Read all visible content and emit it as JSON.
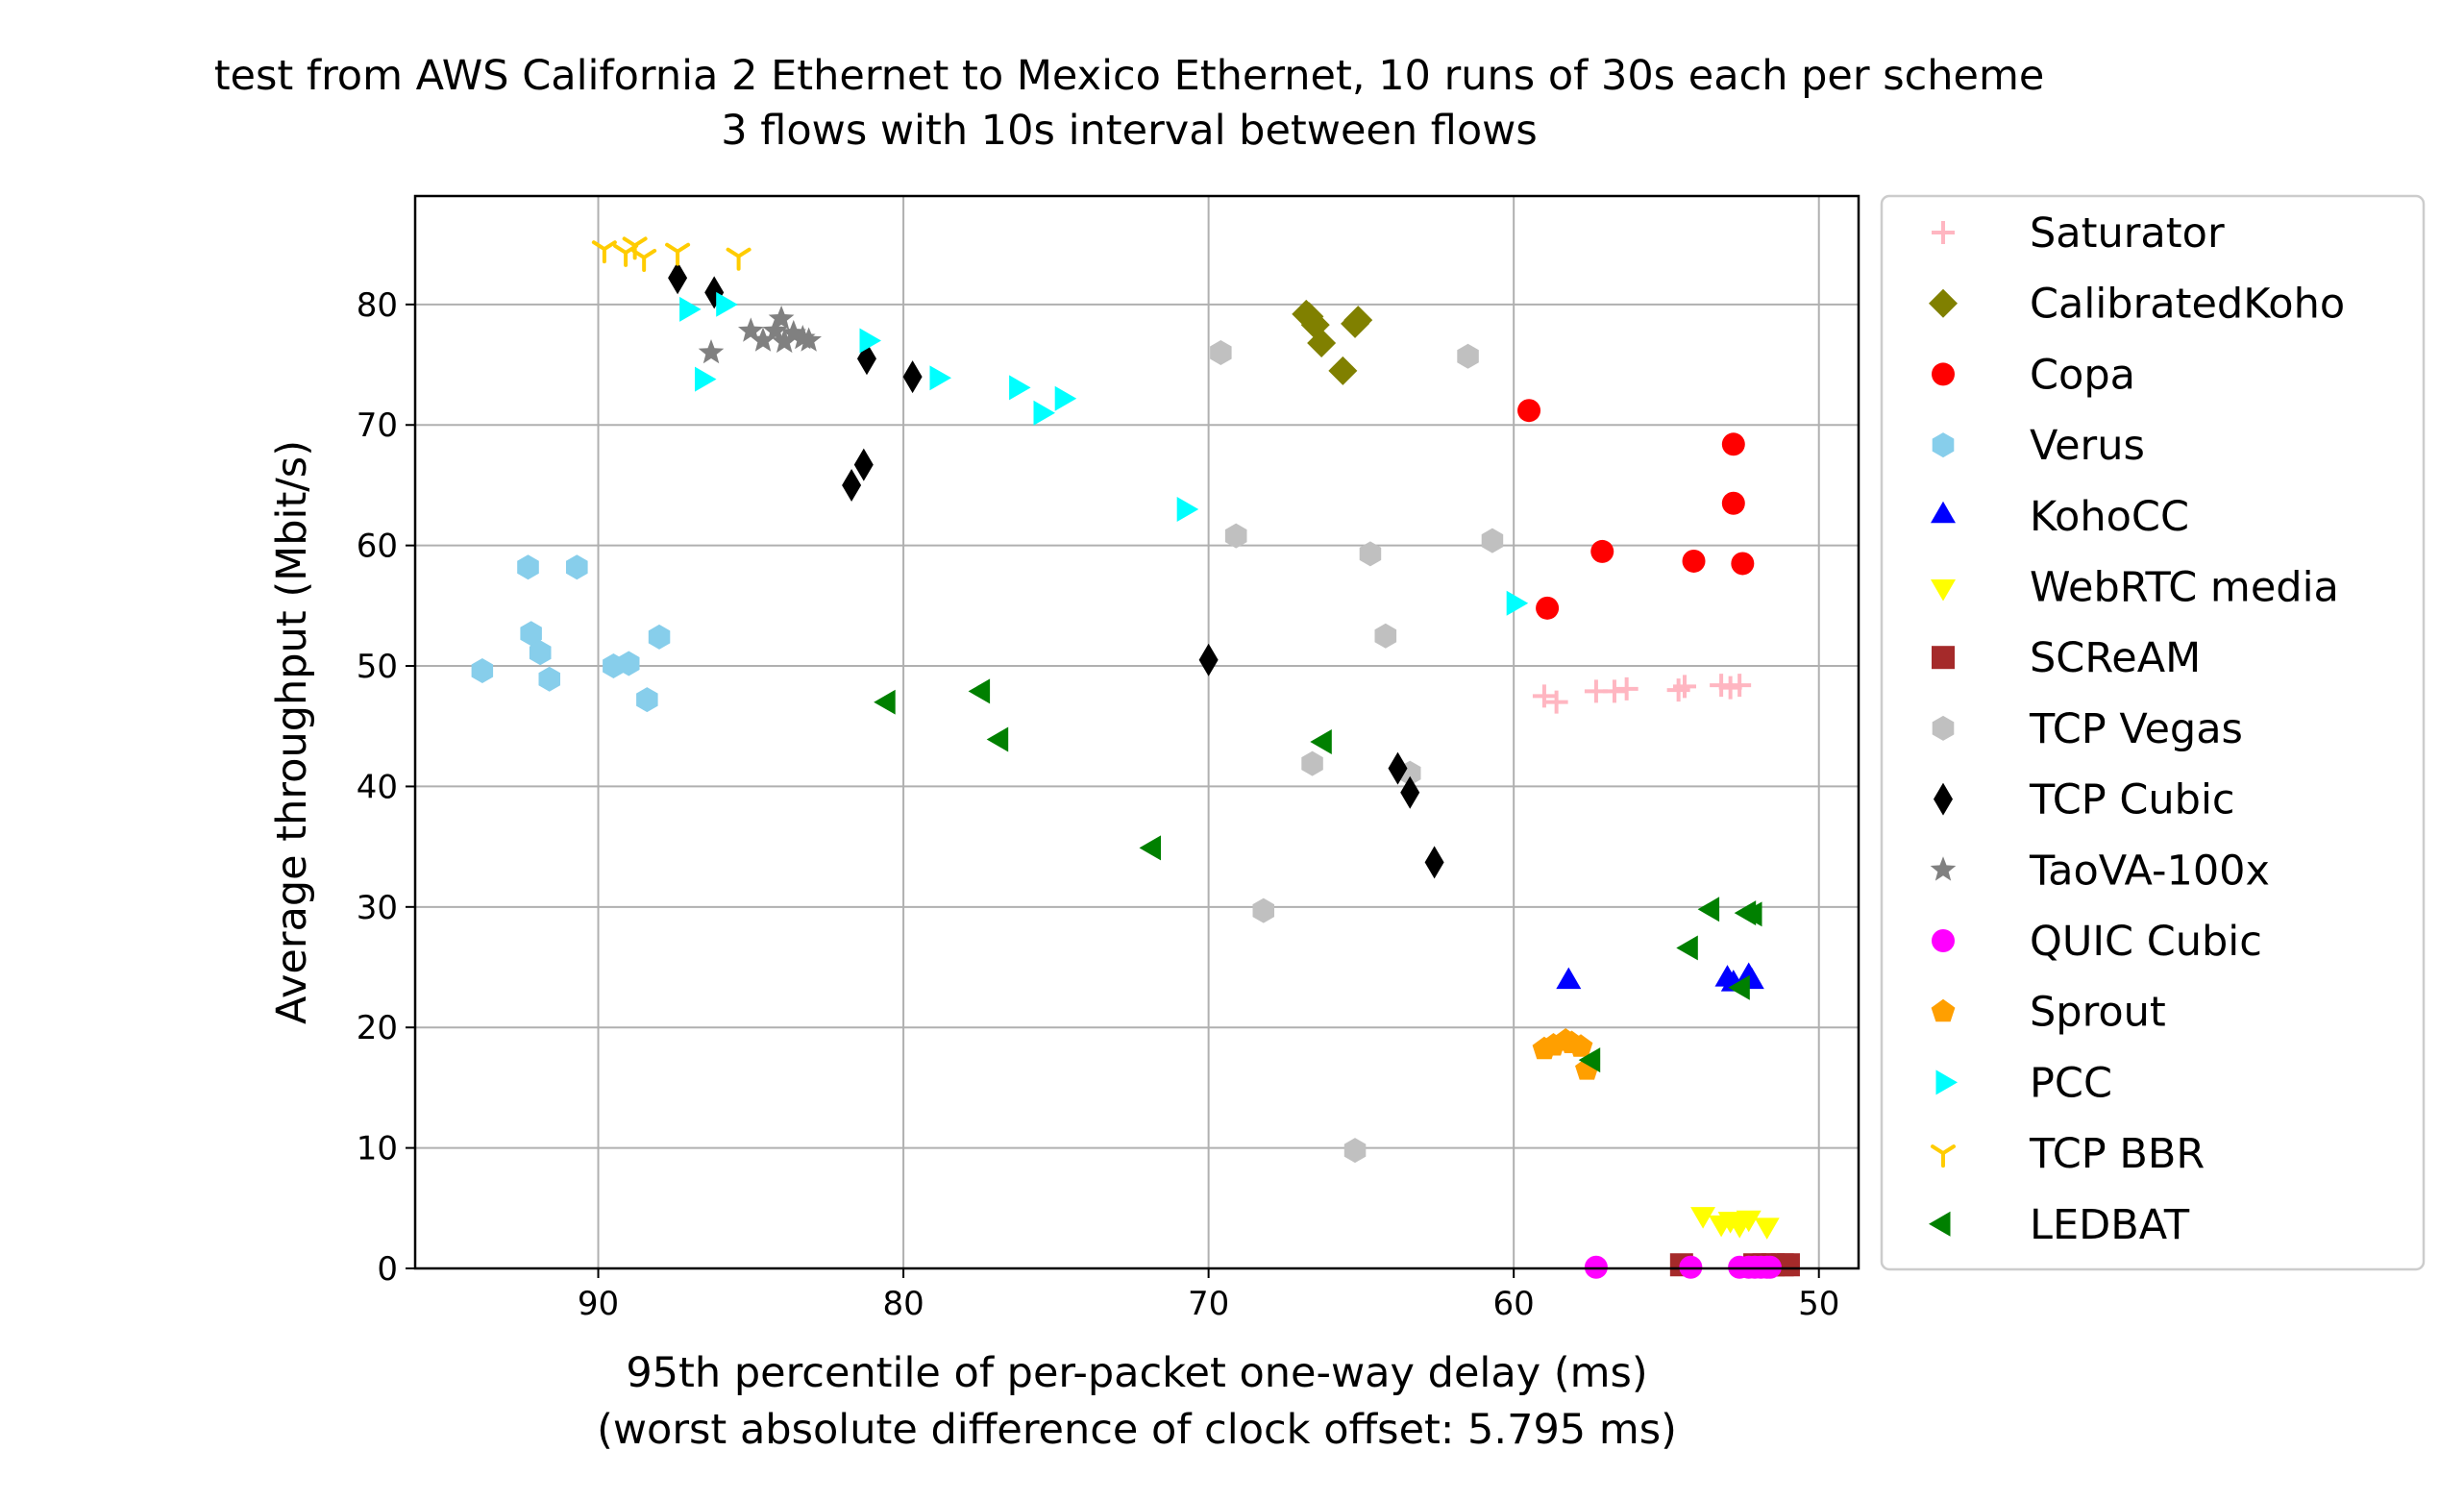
{
  "chart_data": {
    "type": "scatter",
    "title": "test from AWS California 2 Ethernet to Mexico Ethernet, 10 runs of 30s each per scheme",
    "subtitle": "3 flows with 10s interval between flows",
    "xlabel": "95th percentile of per-packet one-way delay (ms)",
    "xlabel2": "(worst absolute difference of clock offset: 5.795 ms)",
    "ylabel": "Average throughput (Mbit/s)",
    "xlim": [
      96,
      48.7
    ],
    "ylim": [
      0,
      89
    ],
    "x_inverted": true,
    "grid": true,
    "legend_position": "outside-right",
    "xticks": [
      90,
      80,
      70,
      60,
      50
    ],
    "yticks": [
      0,
      10,
      20,
      30,
      40,
      50,
      60,
      70,
      80
    ],
    "series": [
      {
        "name": "Saturator",
        "marker": "plus",
        "color": "#ffb6c1",
        "x": [
          59.0,
          58.6,
          57.3,
          56.7,
          56.3,
          54.6,
          54.4,
          53.2,
          52.9,
          52.6
        ],
        "y": [
          47.5,
          47.0,
          47.9,
          47.9,
          48.1,
          48.0,
          48.3,
          48.4,
          48.2,
          48.4
        ]
      },
      {
        "name": "CalibratedKoho",
        "marker": "diamond",
        "color": "#808000",
        "x": [
          66.8,
          66.7,
          66.5,
          66.3,
          65.6,
          65.2,
          65.1
        ],
        "y": [
          79.2,
          79.0,
          78.3,
          76.8,
          74.5,
          78.4,
          78.7
        ]
      },
      {
        "name": "Copa",
        "marker": "circle",
        "color": "#ff0000",
        "x": [
          59.5,
          58.9,
          57.1,
          54.1,
          52.8,
          52.8,
          52.5
        ],
        "y": [
          71.2,
          54.8,
          59.5,
          58.7,
          68.4,
          63.5,
          58.5
        ]
      },
      {
        "name": "Verus",
        "marker": "hexagon",
        "color": "#87ceeb",
        "x": [
          93.8,
          92.3,
          92.2,
          91.9,
          91.6,
          90.7,
          89.5,
          89.0,
          88.4,
          88.0
        ],
        "y": [
          49.6,
          58.2,
          52.7,
          51.1,
          48.9,
          58.2,
          50.0,
          50.2,
          47.2,
          52.4
        ]
      },
      {
        "name": "KohoCC",
        "marker": "triangle-up",
        "color": "#0000ff",
        "x": [
          58.2,
          53.0,
          52.8,
          52.3,
          52.2
        ],
        "y": [
          23.8,
          24.0,
          23.6,
          24.2,
          23.8
        ]
      },
      {
        "name": "WebRTC media",
        "marker": "triangle-down",
        "color": "#ffff00",
        "x": [
          53.8,
          53.2,
          52.9,
          52.6,
          52.3,
          51.7
        ],
        "y": [
          4.5,
          3.8,
          4.1,
          3.7,
          4.2,
          3.6
        ]
      },
      {
        "name": "SCReAM",
        "marker": "square",
        "color": "#a52a2a",
        "x": [
          54.5,
          52.1,
          51.8,
          51.5,
          51.2,
          51.0
        ],
        "y": [
          0.3,
          0.3,
          0.3,
          0.3,
          0.3,
          0.3
        ]
      },
      {
        "name": "TCP Vegas",
        "marker": "hexagon",
        "color": "#c0c0c0",
        "x": [
          69.6,
          69.1,
          68.2,
          66.6,
          65.2,
          64.7,
          64.2,
          63.4,
          61.5,
          60.7
        ],
        "y": [
          76.0,
          60.8,
          29.7,
          41.9,
          9.8,
          59.3,
          52.5,
          41.1,
          75.7,
          60.4
        ]
      },
      {
        "name": "TCP Cubic",
        "marker": "thin-diamond",
        "color": "#000000",
        "x": [
          87.4,
          86.2,
          81.7,
          81.3,
          81.2,
          79.7,
          70.0,
          63.8,
          63.4,
          62.6
        ],
        "y": [
          82.2,
          81.0,
          65.0,
          66.7,
          75.5,
          74.0,
          50.5,
          41.5,
          39.5,
          33.7
        ]
      },
      {
        "name": "TaoVA-100x",
        "marker": "star",
        "color": "#808080",
        "x": [
          86.3,
          85.0,
          84.6,
          84.2,
          84.0,
          83.9,
          83.6,
          83.3,
          83.1
        ],
        "y": [
          76.0,
          77.8,
          77.0,
          77.8,
          78.8,
          76.9,
          77.6,
          77.2,
          77.0
        ]
      },
      {
        "name": "QUIC Cubic",
        "marker": "circle",
        "color": "#ff00ff",
        "x": [
          57.3,
          54.2,
          52.6,
          52.3,
          52.1,
          51.9,
          51.7,
          51.6
        ],
        "y": [
          0.1,
          0.1,
          0.1,
          0.1,
          0.1,
          0.1,
          0.1,
          0.1
        ]
      },
      {
        "name": "Sprout",
        "marker": "pentagon",
        "color": "#ff9f00",
        "x": [
          59.0,
          58.7,
          58.3,
          58.1,
          57.8,
          57.6
        ],
        "y": [
          18.2,
          18.5,
          18.9,
          18.7,
          18.4,
          16.5
        ]
      },
      {
        "name": "PCC",
        "marker": "triangle-right",
        "color": "#00ffff",
        "x": [
          87.1,
          86.6,
          85.9,
          81.2,
          78.9,
          76.3,
          75.5,
          74.8,
          70.8,
          60.0
        ],
        "y": [
          79.6,
          73.8,
          80.0,
          77.0,
          73.9,
          73.1,
          71.0,
          72.2,
          63.0,
          55.2
        ]
      },
      {
        "name": "TCP BBR",
        "marker": "tri-down",
        "color": "#ffcc00",
        "x": [
          89.8,
          89.1,
          88.8,
          88.5,
          87.4,
          85.4
        ],
        "y": [
          84.6,
          84.3,
          84.9,
          83.9,
          84.4,
          84.0
        ]
      },
      {
        "name": "LEDBAT",
        "marker": "triangle-left",
        "color": "#008000",
        "x": [
          80.5,
          77.4,
          76.8,
          71.8,
          66.2,
          57.4,
          54.2,
          53.5,
          52.5,
          52.3,
          52.1
        ],
        "y": [
          47.0,
          47.9,
          43.9,
          34.9,
          43.7,
          17.3,
          26.6,
          29.8,
          23.3,
          29.5,
          29.4
        ]
      }
    ]
  }
}
